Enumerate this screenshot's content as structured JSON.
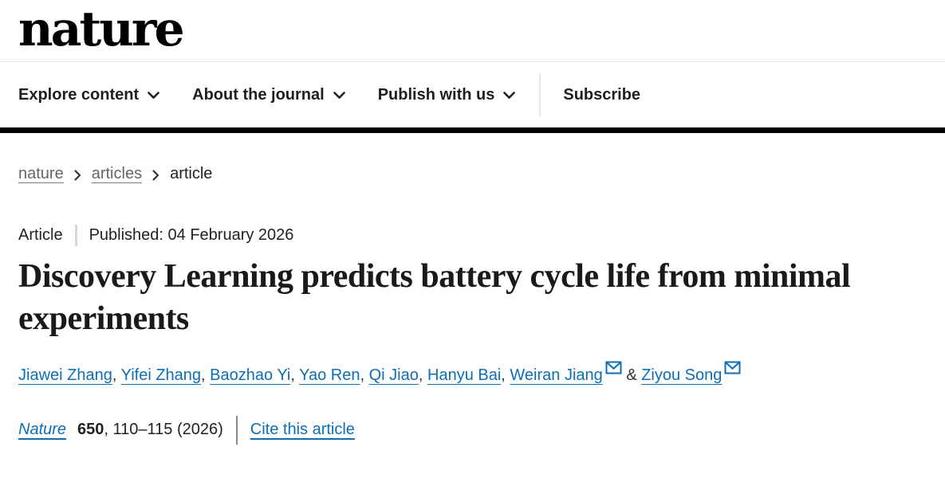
{
  "colors": {
    "link_blue": "#0d6eb4",
    "text_dark": "#222222",
    "breadcrumb_gray": "#666666",
    "top_bar_black": "#000000"
  },
  "brand": {
    "logo_text": "nature"
  },
  "nav": {
    "items": [
      {
        "label": "Explore content"
      },
      {
        "label": "About the journal"
      },
      {
        "label": "Publish with us"
      }
    ],
    "subscribe_label": "Subscribe"
  },
  "breadcrumb": {
    "items": [
      {
        "label": "nature"
      },
      {
        "label": "articles"
      },
      {
        "label": "article"
      }
    ]
  },
  "article": {
    "type_label": "Article",
    "published_label": "Published: 04 February 2026",
    "title": "Discovery Learning predicts battery cycle life from minimal experiments"
  },
  "authors": {
    "separator": ",",
    "ampersand": "&",
    "list": [
      {
        "name": "Jiawei Zhang",
        "email": false
      },
      {
        "name": "Yifei Zhang",
        "email": false
      },
      {
        "name": "Baozhao Yi",
        "email": false
      },
      {
        "name": "Yao Ren",
        "email": false
      },
      {
        "name": "Qi Jiao",
        "email": false
      },
      {
        "name": "Hanyu Bai",
        "email": false
      },
      {
        "name": "Weiran Jiang",
        "email": true
      },
      {
        "name": "Ziyou Song",
        "email": true
      }
    ]
  },
  "citation": {
    "journal": "Nature",
    "volume": "650",
    "pages_year": ", 110–115 (2026)",
    "cite_link_label": "Cite this article"
  }
}
